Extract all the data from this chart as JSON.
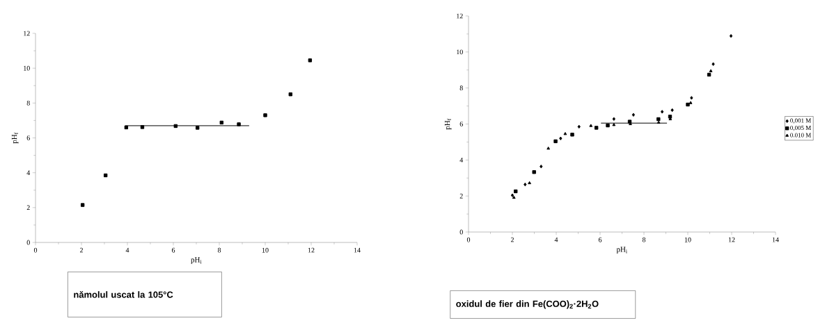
{
  "chart_data": [
    {
      "type": "scatter",
      "title": "**nămolul uscat la 105°C**",
      "xlabel": "pH$_{i}$",
      "ylabel": "pH$_{f}$",
      "xlim": [
        0,
        14
      ],
      "ylim": [
        0,
        12
      ],
      "xticks": [
        0,
        2,
        4,
        6,
        8,
        10,
        12,
        14
      ],
      "yticks": [
        0,
        2,
        4,
        6,
        8,
        10,
        12
      ],
      "grid": false,
      "legend": false,
      "marker": "square",
      "series": [
        {
          "color": "#000000",
          "x": [
            2.05,
            3.05,
            3.95,
            4.65,
            6.1,
            7.05,
            8.1,
            8.85,
            10.0,
            11.1,
            11.95
          ],
          "values": [
            2.15,
            3.85,
            6.6,
            6.62,
            6.68,
            6.58,
            6.88,
            6.78,
            7.3,
            8.5,
            10.45
          ]
        },
        {
          "type": "line",
          "marker": "none",
          "color": "#000000",
          "x": [
            3.9,
            9.3
          ],
          "values": [
            6.7,
            6.7
          ]
        }
      ]
    },
    {
      "type": "scatter",
      "title": "**oxidul de fier din Fe(COO)$_{2}$·2H$_{2}$O**",
      "xlabel": "pH$_{i}$",
      "ylabel": "pH$_{f}$",
      "xlim": [
        0,
        14
      ],
      "ylim": [
        0,
        12
      ],
      "xticks": [
        0,
        2,
        4,
        6,
        8,
        10,
        12,
        14
      ],
      "yticks": [
        0,
        2,
        4,
        6,
        8,
        10,
        12
      ],
      "grid": false,
      "legend": "right",
      "series": [
        {
          "name": "0,001 M",
          "marker": "diamond",
          "color": "#000000",
          "x": [
            2.0,
            2.58,
            3.31,
            4.2,
            5.04,
            6.63,
            7.52,
            8.83,
            9.29,
            10.17,
            11.16,
            11.97
          ],
          "values": [
            2.04,
            2.64,
            3.64,
            5.2,
            5.85,
            6.28,
            6.51,
            6.68,
            6.77,
            7.45,
            9.33,
            10.89
          ]
        },
        {
          "name": "0,005 M",
          "marker": "square",
          "color": "#000000",
          "x": [
            2.15,
            2.99,
            3.97,
            4.73,
            5.83,
            6.35,
            7.35,
            8.66,
            9.19,
            10.0,
            10.97
          ],
          "values": [
            2.26,
            3.33,
            5.04,
            5.41,
            5.79,
            5.92,
            6.13,
            6.27,
            6.41,
            7.08,
            8.74
          ]
        },
        {
          "name": "0.010 M",
          "marker": "triangle",
          "color": "#000000",
          "x": [
            2.07,
            2.78,
            3.64,
            4.41,
            5.58,
            6.63,
            7.38,
            8.67,
            9.2,
            10.13,
            11.05
          ],
          "values": [
            1.91,
            2.72,
            4.64,
            5.45,
            5.9,
            5.95,
            6.0,
            6.08,
            6.27,
            7.17,
            8.94
          ]
        },
        {
          "type": "line",
          "marker": "none",
          "color": "#000000",
          "x": [
            6.04,
            9.05
          ],
          "values": [
            6.05,
            6.05
          ]
        }
      ]
    }
  ]
}
